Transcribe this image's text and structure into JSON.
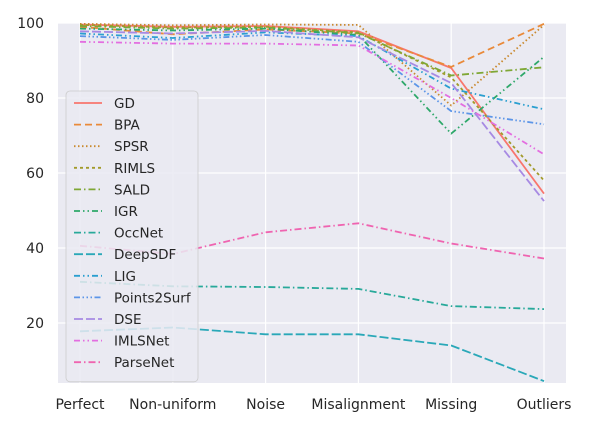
{
  "chart_data": {
    "type": "line",
    "title": "",
    "xlabel": "",
    "ylabel": "",
    "categories": [
      "Perfect",
      "Non-uniform",
      "Noise",
      "Misalignment",
      "Missing",
      "Outliers"
    ],
    "yticks": [
      20,
      40,
      60,
      80,
      100
    ],
    "ylim": [
      4,
      100
    ],
    "grid": true,
    "legend_position": "left",
    "background": "#eaeaf2",
    "series": [
      {
        "name": "GD",
        "color": "#f8766d",
        "dash": "solid",
        "values": [
          99.6,
          99.0,
          99.2,
          97.8,
          88.0,
          54.5
        ]
      },
      {
        "name": "BPA",
        "color": "#e98a3a",
        "dash": "dashed",
        "values": [
          99.0,
          97.0,
          98.3,
          97.2,
          88.3,
          99.8
        ]
      },
      {
        "name": "SPSR",
        "color": "#c9892e",
        "dash": "dotted",
        "values": [
          99.8,
          99.4,
          99.6,
          99.5,
          78.0,
          99.5
        ]
      },
      {
        "name": "RIMLS",
        "color": "#a29a2a",
        "dash": "dashed-dotted",
        "values": [
          99.5,
          98.8,
          99.0,
          97.5,
          85.5,
          58.0
        ]
      },
      {
        "name": "SALD",
        "color": "#7fa735",
        "dash": "dash-dot",
        "values": [
          99.2,
          98.5,
          98.8,
          97.3,
          86.0,
          88.2
        ]
      },
      {
        "name": "IGR",
        "color": "#2ea86a",
        "dash": "dash-dot-dot",
        "values": [
          98.5,
          98.0,
          98.5,
          96.8,
          70.5,
          91.0
        ]
      },
      {
        "name": "OccNet",
        "color": "#28a99a",
        "dash": "dash-dot",
        "values": [
          31.0,
          29.8,
          29.6,
          29.1,
          24.5,
          23.7
        ]
      },
      {
        "name": "DeepSDF",
        "color": "#2aa8b8",
        "dash": "long-dash",
        "values": [
          17.8,
          18.8,
          17.0,
          17.0,
          14.0,
          4.5
        ]
      },
      {
        "name": "LIG",
        "color": "#2a9fd0",
        "dash": "dash-dot-dot",
        "values": [
          97.2,
          96.0,
          97.5,
          96.5,
          82.5,
          77.0
        ]
      },
      {
        "name": "Points2Surf",
        "color": "#5c95e8",
        "dash": "dash-dot-dot-dot",
        "values": [
          96.5,
          95.5,
          96.8,
          95.0,
          76.5,
          73.0
        ]
      },
      {
        "name": "DSE",
        "color": "#a78ae3",
        "dash": "long-dash",
        "values": [
          97.8,
          97.2,
          97.9,
          96.2,
          84.0,
          52.5
        ]
      },
      {
        "name": "IMLSNet",
        "color": "#e36ee0",
        "dash": "dash-dot-dot",
        "values": [
          95.0,
          94.5,
          94.5,
          94.0,
          80.0,
          65.0
        ]
      },
      {
        "name": "ParseNet",
        "color": "#ef64b0",
        "dash": "dash-dot",
        "values": [
          40.6,
          38.4,
          44.2,
          46.6,
          41.2,
          37.2
        ]
      }
    ]
  }
}
